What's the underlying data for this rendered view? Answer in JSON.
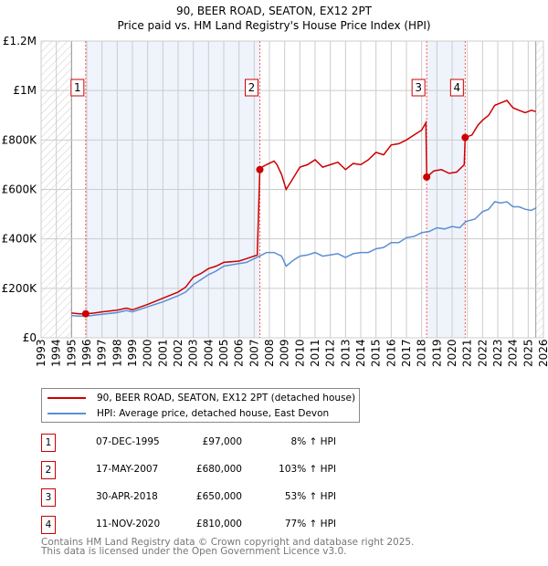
{
  "title": "90, BEER ROAD, SEATON, EX12 2PT",
  "subtitle": "Price paid vs. HM Land Registry's House Price Index (HPI)",
  "chart_data": {
    "type": "line",
    "xlim": [
      1993,
      2026
    ],
    "ylim": [
      0,
      1200000
    ],
    "yticks": [
      {
        "v": 0,
        "l": "£0"
      },
      {
        "v": 200000,
        "l": "£200K"
      },
      {
        "v": 400000,
        "l": "£400K"
      },
      {
        "v": 600000,
        "l": "£600K"
      },
      {
        "v": 800000,
        "l": "£800K"
      },
      {
        "v": 1000000,
        "l": "£1M"
      },
      {
        "v": 1200000,
        "l": "£1.2M"
      }
    ],
    "xticks": [
      "1993",
      "1994",
      "1995",
      "1996",
      "1997",
      "1998",
      "1999",
      "2000",
      "2001",
      "2002",
      "2003",
      "2004",
      "2005",
      "2006",
      "2007",
      "2008",
      "2009",
      "2010",
      "2011",
      "2012",
      "2013",
      "2014",
      "2015",
      "2016",
      "2017",
      "2018",
      "2019",
      "2020",
      "2021",
      "2022",
      "2023",
      "2024",
      "2025",
      "2026"
    ],
    "data_range": [
      1995,
      2025.5
    ],
    "shaded_periods": [
      [
        1995.93,
        2007.37
      ],
      [
        2018.33,
        2020.86
      ]
    ],
    "series": [
      {
        "name": "90, BEER ROAD, SEATON, EX12 2PT (detached house)",
        "color": "#cc0000",
        "x": [
          1995,
          1995.5,
          1995.93,
          1996.5,
          1997,
          1998,
          1998.6,
          1999,
          2000,
          2001,
          2002,
          2002.5,
          2003,
          2003.5,
          2004,
          2004.5,
          2005,
          2006,
          2006.5,
          2007.2,
          2007.37,
          2007.5,
          2007.8,
          2008.3,
          2008.5,
          2008.8,
          2009.1,
          2009.6,
          2010,
          2010.5,
          2011,
          2011.5,
          2012,
          2012.5,
          2013,
          2013.5,
          2014,
          2014.5,
          2015,
          2015.5,
          2016,
          2016.5,
          2017,
          2017.5,
          2018.0,
          2018.28,
          2018.33,
          2018.8,
          2019.3,
          2019.8,
          2020.3,
          2020.8,
          2020.86,
          2021.3,
          2021.7,
          2022,
          2022.4,
          2022.8,
          2023.2,
          2023.6,
          2024,
          2024.4,
          2024.8,
          2025.2,
          2025.5
        ],
        "y": [
          100000,
          97000,
          97000,
          100000,
          105000,
          112000,
          120000,
          113000,
          135000,
          160000,
          185000,
          205000,
          245000,
          260000,
          280000,
          290000,
          305000,
          310000,
          320000,
          335000,
          680000,
          690000,
          700000,
          715000,
          700000,
          660000,
          600000,
          650000,
          690000,
          700000,
          720000,
          690000,
          700000,
          710000,
          680000,
          705000,
          700000,
          720000,
          750000,
          740000,
          780000,
          785000,
          800000,
          820000,
          840000,
          870000,
          650000,
          675000,
          680000,
          665000,
          670000,
          700000,
          810000,
          820000,
          860000,
          880000,
          900000,
          940000,
          950000,
          960000,
          930000,
          920000,
          910000,
          920000,
          915000
        ]
      },
      {
        "name": "HPI: Average price, detached house, East Devon",
        "color": "#5b8fd4",
        "x": [
          1995,
          1995.5,
          1996,
          1997,
          1998,
          1998.6,
          1999,
          2000,
          2001,
          2002,
          2002.5,
          2003,
          2003.5,
          2004,
          2004.5,
          2005,
          2006,
          2006.5,
          2007,
          2007.5,
          2007.8,
          2008.3,
          2008.8,
          2009.1,
          2009.6,
          2010,
          2010.5,
          2011,
          2011.5,
          2012,
          2012.5,
          2013,
          2013.5,
          2014,
          2014.5,
          2015,
          2015.5,
          2016,
          2016.5,
          2017,
          2017.5,
          2018,
          2018.5,
          2019,
          2019.5,
          2020,
          2020.5,
          2020.9,
          2021.5,
          2022,
          2022.4,
          2022.8,
          2023.2,
          2023.6,
          2024,
          2024.4,
          2024.8,
          2025.2,
          2025.5
        ],
        "y": [
          90000,
          88000,
          88000,
          95000,
          102000,
          110000,
          105000,
          125000,
          145000,
          170000,
          185000,
          215000,
          235000,
          255000,
          270000,
          290000,
          300000,
          305000,
          320000,
          335000,
          345000,
          345000,
          330000,
          290000,
          315000,
          330000,
          335000,
          345000,
          330000,
          335000,
          340000,
          325000,
          340000,
          345000,
          345000,
          360000,
          365000,
          385000,
          385000,
          405000,
          410000,
          425000,
          430000,
          445000,
          440000,
          450000,
          445000,
          470000,
          480000,
          510000,
          520000,
          550000,
          545000,
          550000,
          530000,
          530000,
          520000,
          515000,
          525000
        ]
      }
    ],
    "sales": [
      {
        "label": "1",
        "date": "07-DEC-1995",
        "x": 1995.93,
        "price": 97000,
        "price_label": "£97,000",
        "hpi": "8% ↑ HPI"
      },
      {
        "label": "2",
        "date": "17-MAY-2007",
        "x": 2007.37,
        "price": 680000,
        "price_label": "£680,000",
        "hpi": "103% ↑ HPI"
      },
      {
        "label": "3",
        "date": "30-APR-2018",
        "x": 2018.33,
        "price": 650000,
        "price_label": "£650,000",
        "hpi": "53% ↑ HPI"
      },
      {
        "label": "4",
        "date": "11-NOV-2020",
        "x": 2020.86,
        "price": 810000,
        "price_label": "£810,000",
        "hpi": "77% ↑ HPI"
      }
    ]
  },
  "legend": {
    "red": "90, BEER ROAD, SEATON, EX12 2PT (detached house)",
    "blue": "HPI: Average price, detached house, East Devon"
  },
  "footer": {
    "line1": "Contains HM Land Registry data © Crown copyright and database right 2025.",
    "line2": "This data is licensed under the Open Government Licence v3.0."
  }
}
